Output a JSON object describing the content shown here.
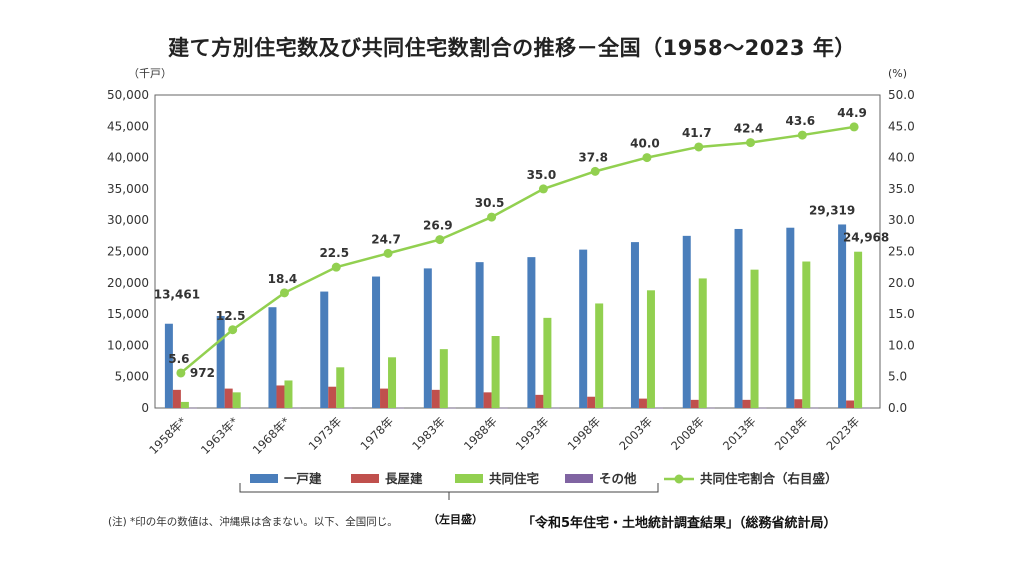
{
  "title": "建て方別住宅数及び共同住宅数割合の推移－全国（1958～2023 年）",
  "note": "(注) *印の年の数値は、沖縄県は含まない。以下、全国同じ。",
  "left_axis_note": "（左目盛）",
  "source": "「令和5年住宅・土地統計調査結果」（総務省統計局）",
  "colors": {
    "detached": "#4a7ebb",
    "row": "#c0504d",
    "apartment": "#92d050",
    "other": "#8064a2",
    "ratio": "#92d050"
  },
  "chart_data": {
    "type": "bar",
    "categories": [
      "1958年*",
      "1963年*",
      "1968年*",
      "1973年",
      "1978年",
      "1983年",
      "1988年",
      "1993年",
      "1998年",
      "2003年",
      "2008年",
      "2013年",
      "2018年",
      "2023年"
    ],
    "ylabel": "（千戸）",
    "y2label": "(%)",
    "ylim": [
      0,
      50000
    ],
    "y2lim": [
      0,
      50.0
    ],
    "yticks": [
      "0",
      "5,000",
      "10,000",
      "15,000",
      "20,000",
      "25,000",
      "30,000",
      "35,000",
      "40,000",
      "45,000",
      "50,000"
    ],
    "y2ticks": [
      "0.0",
      "5.0",
      "10.0",
      "15.0",
      "20.0",
      "25.0",
      "30.0",
      "35.0",
      "40.0",
      "45.0",
      "50.0"
    ],
    "grid": false,
    "legend_position": "bottom",
    "series": [
      {
        "name": "一戸建",
        "key": "detached",
        "values": [
          13461,
          14700,
          16100,
          18600,
          21000,
          22300,
          23300,
          24100,
          25300,
          26500,
          27500,
          28600,
          28800,
          29319
        ]
      },
      {
        "name": "長屋建",
        "key": "row",
        "values": [
          2900,
          3100,
          3600,
          3400,
          3100,
          2900,
          2500,
          2100,
          1800,
          1500,
          1300,
          1300,
          1400,
          1200
        ]
      },
      {
        "name": "共同住宅",
        "key": "apartment",
        "values": [
          972,
          2500,
          4400,
          6500,
          8100,
          9400,
          11500,
          14400,
          16700,
          18800,
          20700,
          22100,
          23400,
          24968
        ]
      },
      {
        "name": "その他",
        "key": "other",
        "values": [
          30,
          30,
          30,
          30,
          30,
          30,
          30,
          30,
          30,
          30,
          30,
          30,
          30,
          30
        ]
      }
    ],
    "line_series": {
      "name": "共同住宅割合（右目盛）",
      "key": "ratio",
      "values": [
        5.6,
        12.5,
        18.4,
        22.5,
        24.7,
        26.9,
        30.5,
        35.0,
        37.8,
        40.0,
        41.7,
        42.4,
        43.6,
        44.9
      ],
      "labels": [
        "5.6",
        "12.5",
        "18.4",
        "22.5",
        "24.7",
        "26.9",
        "30.5",
        "35.0",
        "37.8",
        "40.0",
        "41.7",
        "42.4",
        "43.6",
        "44.9"
      ]
    },
    "bar_labels": [
      {
        "series": "detached",
        "index": 0,
        "text": "13,461"
      },
      {
        "series": "apartment",
        "index": 0,
        "text": "972"
      },
      {
        "series": "detached",
        "index": 13,
        "text": "29,319"
      },
      {
        "series": "apartment",
        "index": 13,
        "text": "24,968"
      }
    ]
  }
}
